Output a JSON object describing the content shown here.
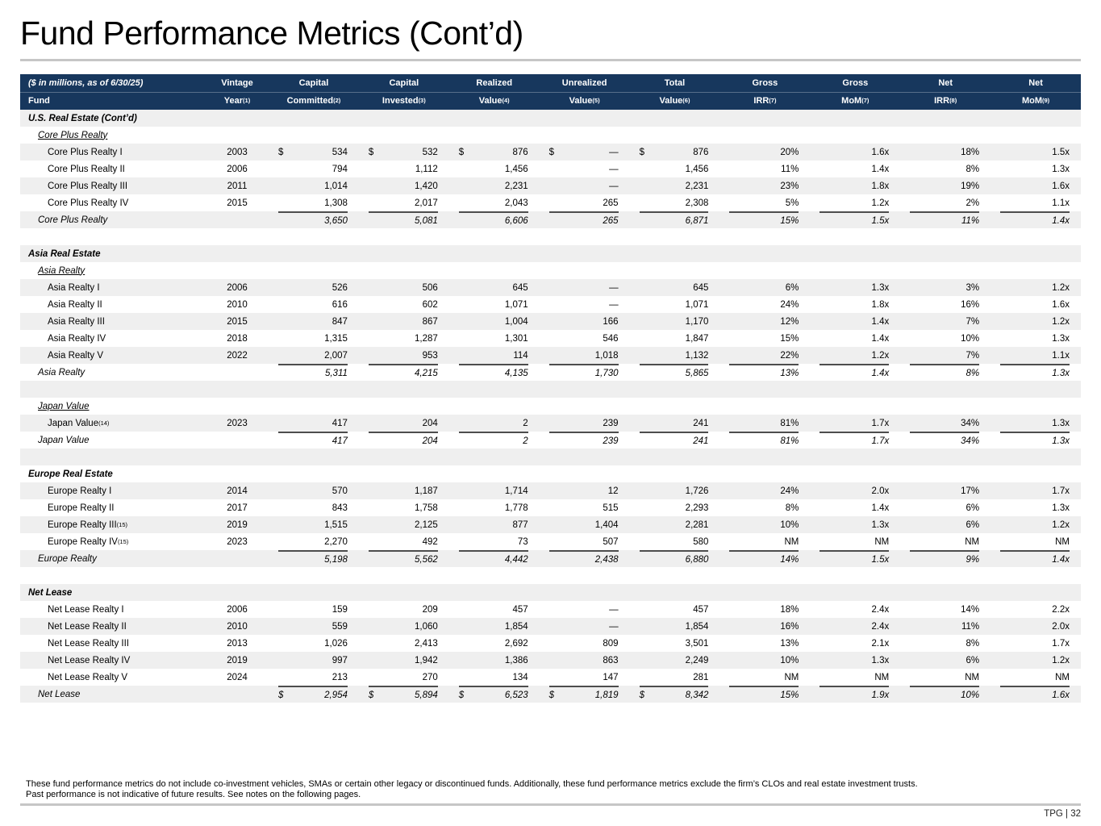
{
  "page": {
    "title": "Fund Performance Metrics (Cont’d)",
    "footnote1": "These fund performance metrics do not include co-investment vehicles, SMAs or certain other legacy or discontinued funds. Additionally, these fund performance metrics exclude the firm’s CLOs and real estate investment trusts.",
    "footnote2": "Past performance is not indicative of future results. See notes on the following pages.",
    "page_label": "TPG | 32"
  },
  "colors": {
    "header_bg": "#17375D",
    "stripe": "#EFEFEF",
    "total_rule": "#4D4D4D",
    "divider": "#C6C6C6",
    "text": "#000000"
  },
  "table": {
    "header": {
      "col0_line1": "($ in millions, as of 6/30/25)",
      "col0_line2": "Fund",
      "columns": [
        {
          "line1": "Vintage",
          "line2": "Year",
          "sup": "(1)"
        },
        {
          "line1": "Capital",
          "line2": "Committed",
          "sup": "(2)"
        },
        {
          "line1": "Capital",
          "line2": "Invested",
          "sup": "(3)"
        },
        {
          "line1": "Realized",
          "line2": "Value",
          "sup": "(4)"
        },
        {
          "line1": "Unrealized",
          "line2": "Value",
          "sup": "(5)"
        },
        {
          "line1": "Total",
          "line2": "Value",
          "sup": "(6)"
        },
        {
          "line1": "Gross",
          "line2": "IRR",
          "sup": "(7)"
        },
        {
          "line1": "Gross",
          "line2": "MoM",
          "sup": "(7)"
        },
        {
          "line1": "Net",
          "line2": "IRR",
          "sup": "(8)"
        },
        {
          "line1": "Net",
          "line2": "MoM",
          "sup": "(9)"
        }
      ]
    },
    "rows": [
      {
        "type": "section",
        "label": "U.S. Real Estate (Cont’d)",
        "shade": true
      },
      {
        "type": "subsection",
        "label": "Core Plus Realty",
        "shade": false
      },
      {
        "type": "fund",
        "label": "Core Plus Realty I",
        "shade": true,
        "dollars": true,
        "values": [
          "2003",
          "534",
          "532",
          "876",
          "—",
          "876",
          "20%",
          "1.6x",
          "18%",
          "1.5x"
        ]
      },
      {
        "type": "fund",
        "label": "Core Plus Realty II",
        "shade": false,
        "values": [
          "2006",
          "794",
          "1,112",
          "1,456",
          "—",
          "1,456",
          "11%",
          "1.4x",
          "8%",
          "1.3x"
        ]
      },
      {
        "type": "fund",
        "label": "Core Plus Realty III",
        "shade": true,
        "values": [
          "2011",
          "1,014",
          "1,420",
          "2,231",
          "—",
          "2,231",
          "23%",
          "1.8x",
          "19%",
          "1.6x"
        ]
      },
      {
        "type": "fund",
        "label": "Core Plus Realty IV",
        "shade": false,
        "values": [
          "2015",
          "1,308",
          "2,017",
          "2,043",
          "265",
          "2,308",
          "5%",
          "1.2x",
          "2%",
          "1.1x"
        ]
      },
      {
        "type": "total",
        "label": "Core Plus Realty",
        "shade": true,
        "rule": true,
        "values": [
          "",
          "3,650",
          "5,081",
          "6,606",
          "265",
          "6,871",
          "15%",
          "1.5x",
          "11%",
          "1.4x"
        ]
      },
      {
        "type": "spacer",
        "shade": false
      },
      {
        "type": "section",
        "label": "Asia Real Estate",
        "shade": true
      },
      {
        "type": "subsection",
        "label": "Asia Realty",
        "shade": false
      },
      {
        "type": "fund",
        "label": "Asia Realty I",
        "shade": true,
        "values": [
          "2006",
          "526",
          "506",
          "645",
          "—",
          "645",
          "6%",
          "1.3x",
          "3%",
          "1.2x"
        ]
      },
      {
        "type": "fund",
        "label": "Asia Realty II",
        "shade": false,
        "values": [
          "2010",
          "616",
          "602",
          "1,071",
          "—",
          "1,071",
          "24%",
          "1.8x",
          "16%",
          "1.6x"
        ]
      },
      {
        "type": "fund",
        "label": "Asia Realty III",
        "shade": true,
        "values": [
          "2015",
          "847",
          "867",
          "1,004",
          "166",
          "1,170",
          "12%",
          "1.4x",
          "7%",
          "1.2x"
        ]
      },
      {
        "type": "fund",
        "label": "Asia Realty IV",
        "shade": false,
        "values": [
          "2018",
          "1,315",
          "1,287",
          "1,301",
          "546",
          "1,847",
          "15%",
          "1.4x",
          "10%",
          "1.3x"
        ]
      },
      {
        "type": "fund",
        "label": "Asia Realty V",
        "shade": true,
        "values": [
          "2022",
          "2,007",
          "953",
          "114",
          "1,018",
          "1,132",
          "22%",
          "1.2x",
          "7%",
          "1.1x"
        ]
      },
      {
        "type": "total",
        "label": "Asia Realty",
        "shade": false,
        "rule": true,
        "values": [
          "",
          "5,311",
          "4,215",
          "4,135",
          "1,730",
          "5,865",
          "13%",
          "1.4x",
          "8%",
          "1.3x"
        ]
      },
      {
        "type": "spacer",
        "shade": true
      },
      {
        "type": "subsection",
        "label": "Japan Value",
        "shade": false
      },
      {
        "type": "fund",
        "label": "Japan Value",
        "sup": "(14)",
        "shade": true,
        "values": [
          "2023",
          "417",
          "204",
          "2",
          "239",
          "241",
          "81%",
          "1.7x",
          "34%",
          "1.3x"
        ]
      },
      {
        "type": "total",
        "label": "Japan Value",
        "shade": false,
        "rule": true,
        "values": [
          "",
          "417",
          "204",
          "2",
          "239",
          "241",
          "81%",
          "1.7x",
          "34%",
          "1.3x"
        ]
      },
      {
        "type": "spacer",
        "shade": true
      },
      {
        "type": "section",
        "label": "Europe Real Estate",
        "shade": false
      },
      {
        "type": "fund",
        "label": "Europe Realty I",
        "shade": true,
        "values": [
          "2014",
          "570",
          "1,187",
          "1,714",
          "12",
          "1,726",
          "24%",
          "2.0x",
          "17%",
          "1.7x"
        ]
      },
      {
        "type": "fund",
        "label": "Europe Realty II",
        "shade": false,
        "values": [
          "2017",
          "843",
          "1,758",
          "1,778",
          "515",
          "2,293",
          "8%",
          "1.4x",
          "6%",
          "1.3x"
        ]
      },
      {
        "type": "fund",
        "label": "Europe Realty III",
        "sup": "(15)",
        "shade": true,
        "values": [
          "2019",
          "1,515",
          "2,125",
          "877",
          "1,404",
          "2,281",
          "10%",
          "1.3x",
          "6%",
          "1.2x"
        ]
      },
      {
        "type": "fund",
        "label": "Europe Realty IV",
        "sup": "(15)",
        "shade": false,
        "values": [
          "2023",
          "2,270",
          "492",
          "73",
          "507",
          "580",
          "NM",
          "NM",
          "NM",
          "NM"
        ]
      },
      {
        "type": "total",
        "label": "Europe Realty",
        "shade": true,
        "rule": true,
        "values": [
          "",
          "5,198",
          "5,562",
          "4,442",
          "2,438",
          "6,880",
          "14%",
          "1.5x",
          "9%",
          "1.4x"
        ]
      },
      {
        "type": "spacer",
        "shade": false
      },
      {
        "type": "section",
        "label": "Net Lease",
        "shade": true
      },
      {
        "type": "fund",
        "label": "Net Lease Realty I",
        "shade": false,
        "values": [
          "2006",
          "159",
          "209",
          "457",
          "—",
          "457",
          "18%",
          "2.4x",
          "14%",
          "2.2x"
        ]
      },
      {
        "type": "fund",
        "label": "Net Lease Realty II",
        "shade": true,
        "values": [
          "2010",
          "559",
          "1,060",
          "1,854",
          "—",
          "1,854",
          "16%",
          "2.4x",
          "11%",
          "2.0x"
        ]
      },
      {
        "type": "fund",
        "label": "Net Lease Realty III",
        "shade": false,
        "values": [
          "2013",
          "1,026",
          "2,413",
          "2,692",
          "809",
          "3,501",
          "13%",
          "2.1x",
          "8%",
          "1.7x"
        ]
      },
      {
        "type": "fund",
        "label": "Net Lease Realty IV",
        "shade": true,
        "values": [
          "2019",
          "997",
          "1,942",
          "1,386",
          "863",
          "2,249",
          "10%",
          "1.3x",
          "6%",
          "1.2x"
        ]
      },
      {
        "type": "fund",
        "label": "Net Lease Realty V",
        "shade": false,
        "values": [
          "2024",
          "213",
          "270",
          "134",
          "147",
          "281",
          "NM",
          "NM",
          "NM",
          "NM"
        ]
      },
      {
        "type": "total",
        "label": "Net Lease",
        "shade": true,
        "rule": true,
        "dollars": true,
        "values": [
          "",
          "2,954",
          "5,894",
          "6,523",
          "1,819",
          "8,342",
          "15%",
          "1.9x",
          "10%",
          "1.6x"
        ]
      }
    ]
  }
}
